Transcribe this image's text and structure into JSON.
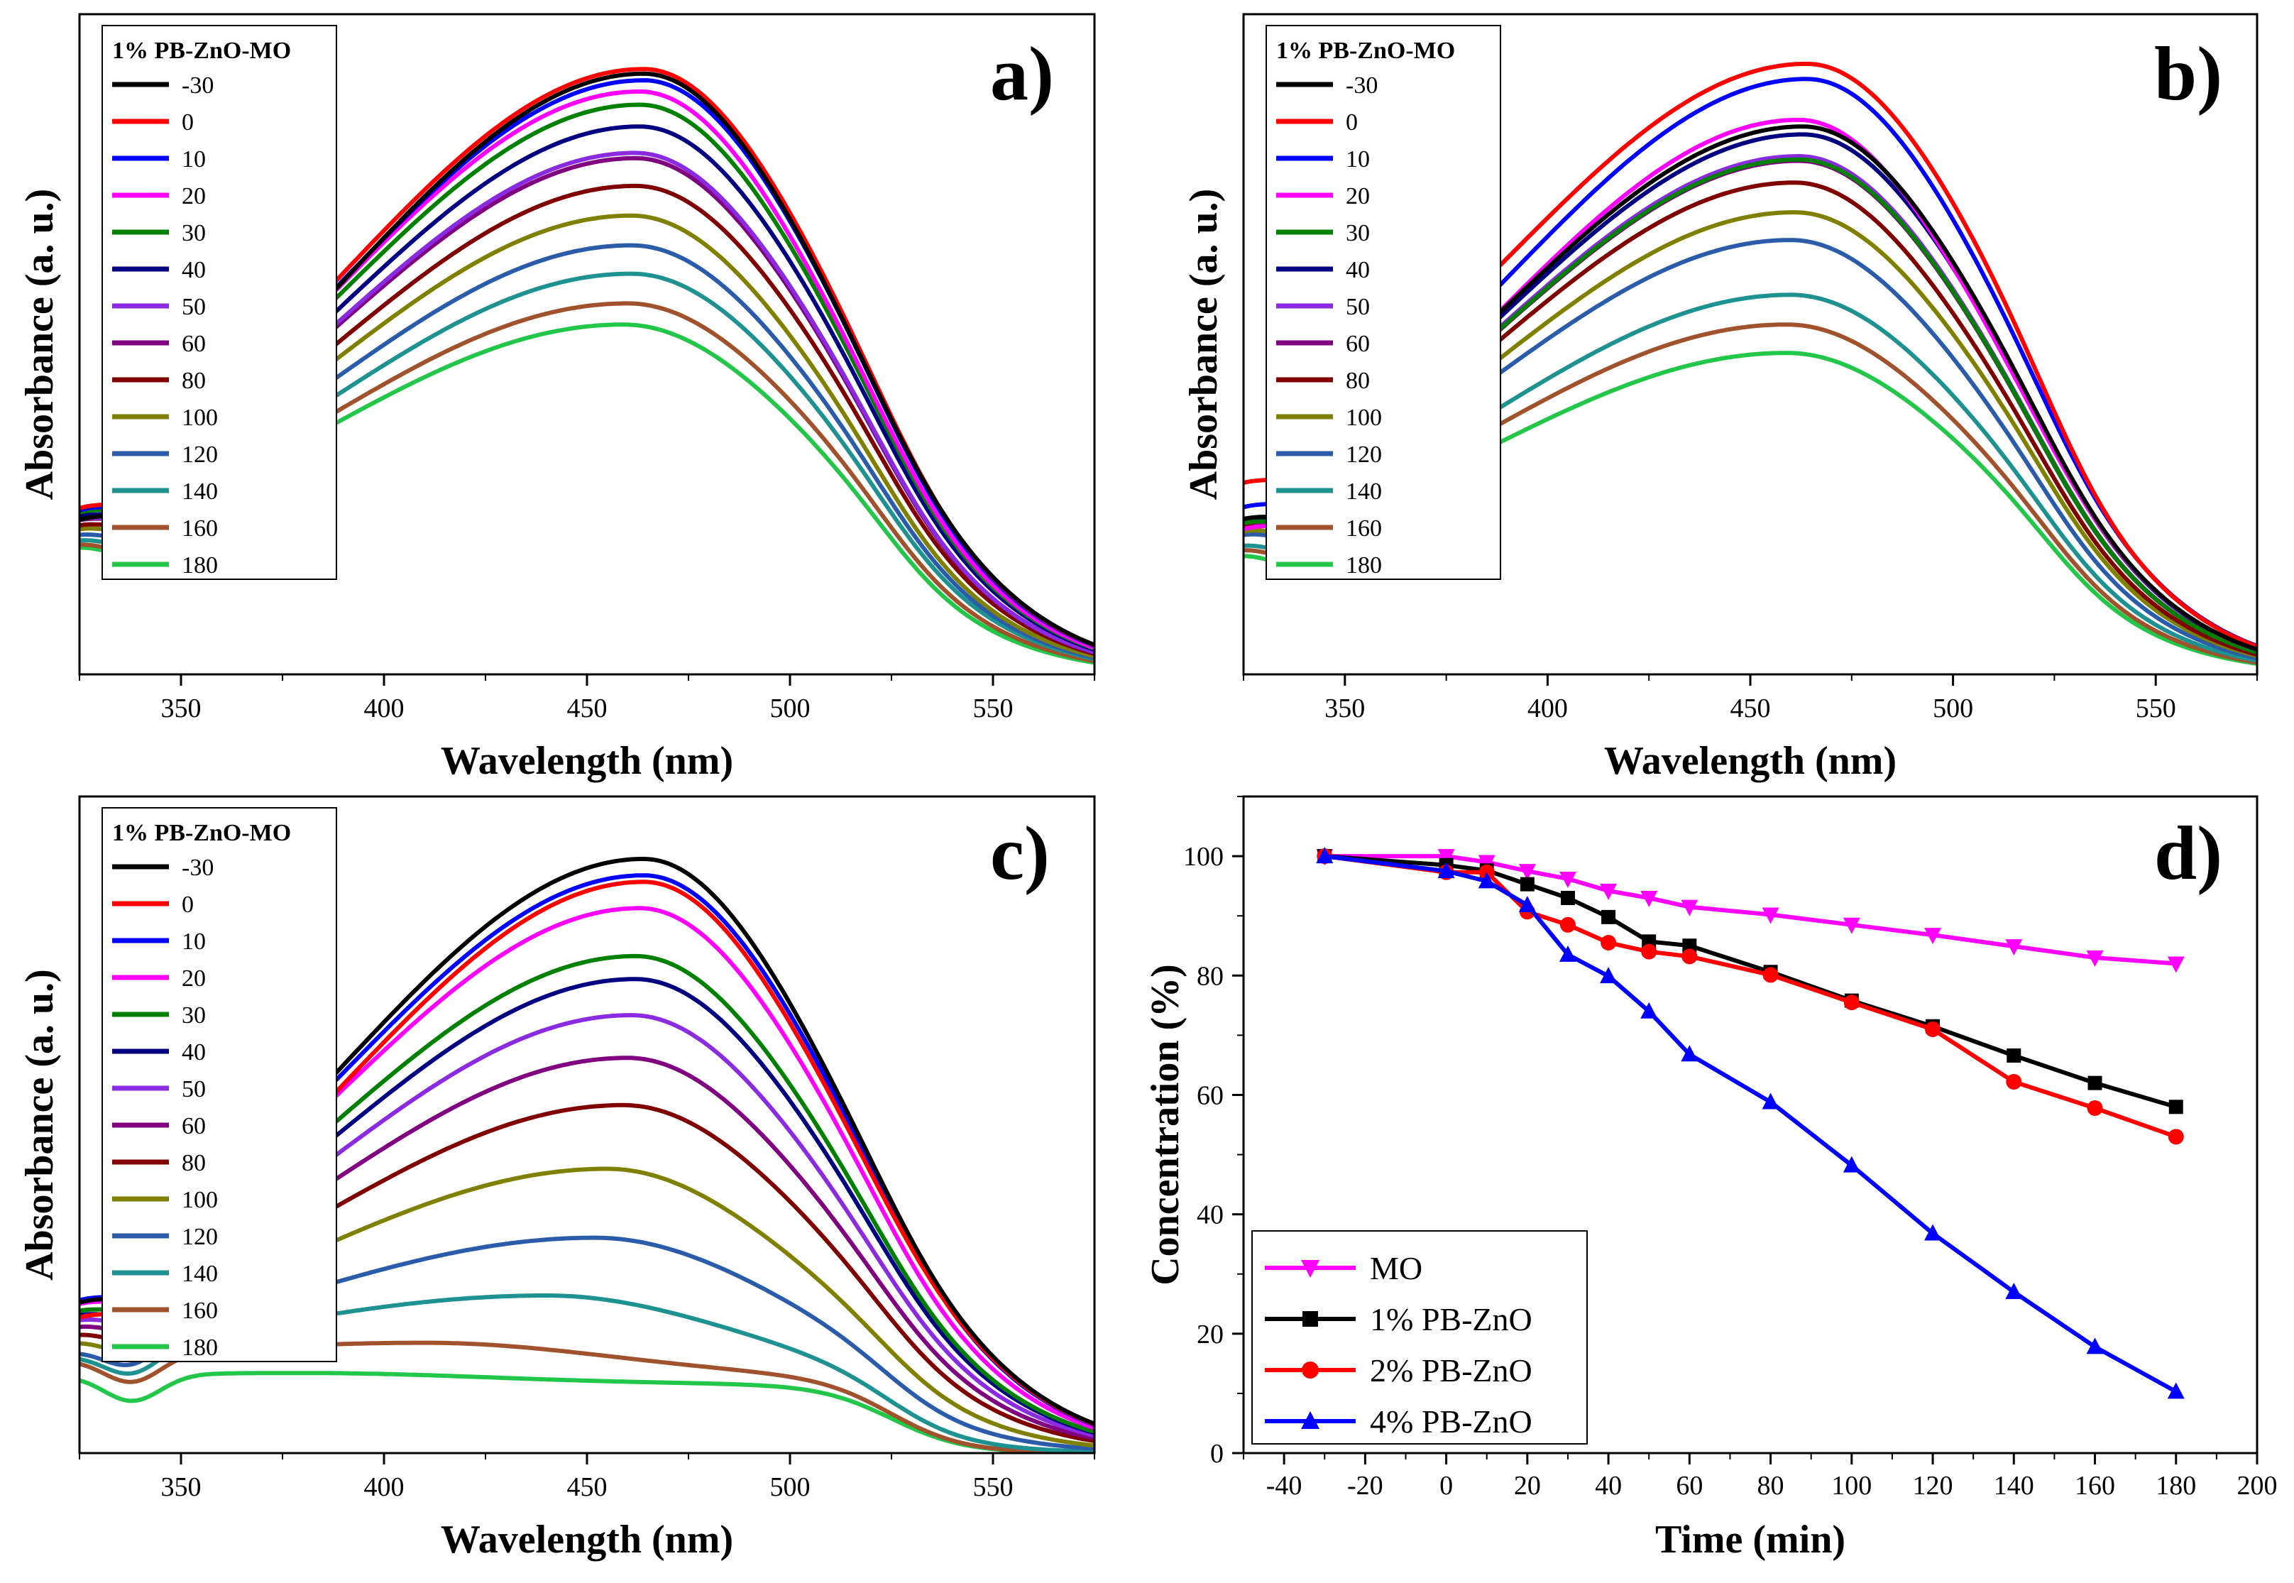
{
  "chart_data": [
    {
      "panel": "a)",
      "type": "line",
      "xlabel": "Wavelength (nm)",
      "ylabel": "Absorbance (a. u.)",
      "xlim": [
        325,
        575
      ],
      "xticks": [
        350,
        400,
        450,
        500,
        550
      ],
      "legend_title": "1% PB-ZnO-MO",
      "legend_position": "top-left",
      "series": [
        {
          "name": "-30",
          "color": "#000000",
          "peak": 0.91,
          "peak_x": 464,
          "baseline": 0.095
        },
        {
          "name": "0",
          "color": "#ff0000",
          "peak": 0.917,
          "peak_x": 464,
          "baseline": 0.115
        },
        {
          "name": "10",
          "color": "#0000ff",
          "peak": 0.9,
          "peak_x": 464,
          "baseline": 0.115
        },
        {
          "name": "20",
          "color": "#ff00ff",
          "peak": 0.883,
          "peak_x": 463,
          "baseline": 0.115
        },
        {
          "name": "30",
          "color": "#008000",
          "peak": 0.863,
          "peak_x": 463,
          "baseline": 0.115
        },
        {
          "name": "40",
          "color": "#000080",
          "peak": 0.83,
          "peak_x": 463,
          "baseline": 0.115
        },
        {
          "name": "50",
          "color": "#8a2be2",
          "peak": 0.79,
          "peak_x": 462,
          "baseline": 0.115
        },
        {
          "name": "60",
          "color": "#800080",
          "peak": 0.782,
          "peak_x": 462,
          "baseline": 0.115
        },
        {
          "name": "80",
          "color": "#800000",
          "peak": 0.74,
          "peak_x": 462,
          "baseline": 0.115
        },
        {
          "name": "100",
          "color": "#808000",
          "peak": 0.695,
          "peak_x": 461,
          "baseline": 0.115
        },
        {
          "name": "120",
          "color": "#2a5caa",
          "peak": 0.65,
          "peak_x": 461,
          "baseline": 0.115
        },
        {
          "name": "140",
          "color": "#1e9191",
          "peak": 0.607,
          "peak_x": 461,
          "baseline": 0.115
        },
        {
          "name": "160",
          "color": "#a0522d",
          "peak": 0.562,
          "peak_x": 460,
          "baseline": 0.115
        },
        {
          "name": "180",
          "color": "#22c74a",
          "peak": 0.53,
          "peak_x": 459,
          "baseline": 0.115
        }
      ]
    },
    {
      "panel": "b)",
      "type": "line",
      "xlabel": "Wavelength (nm)",
      "ylabel": "Absorbance (a. u.)",
      "xlim": [
        325,
        575
      ],
      "xticks": [
        350,
        400,
        450,
        500,
        550
      ],
      "legend_title": "1% PB-ZnO-MO",
      "legend_position": "top-left",
      "series": [
        {
          "name": "-30",
          "color": "#000000",
          "peak": 0.83,
          "peak_x": 463,
          "baseline": 0.11
        },
        {
          "name": "0",
          "color": "#ff0000",
          "peak": 0.925,
          "peak_x": 464,
          "baseline": 0.16
        },
        {
          "name": "10",
          "color": "#0000ff",
          "peak": 0.902,
          "peak_x": 464,
          "baseline": 0.12
        },
        {
          "name": "20",
          "color": "#ff00ff",
          "peak": 0.84,
          "peak_x": 462,
          "baseline": 0.085
        },
        {
          "name": "30",
          "color": "#008000",
          "peak": 0.78,
          "peak_x": 462,
          "baseline": 0.11
        },
        {
          "name": "40",
          "color": "#000080",
          "peak": 0.818,
          "peak_x": 463,
          "baseline": 0.11
        },
        {
          "name": "50",
          "color": "#8a2be2",
          "peak": 0.785,
          "peak_x": 462,
          "baseline": 0.11
        },
        {
          "name": "60",
          "color": "#800080",
          "peak": 0.778,
          "peak_x": 462,
          "baseline": 0.11
        },
        {
          "name": "80",
          "color": "#800000",
          "peak": 0.745,
          "peak_x": 461,
          "baseline": 0.11
        },
        {
          "name": "100",
          "color": "#808000",
          "peak": 0.7,
          "peak_x": 461,
          "baseline": 0.11
        },
        {
          "name": "120",
          "color": "#2a5caa",
          "peak": 0.658,
          "peak_x": 460,
          "baseline": 0.11
        },
        {
          "name": "140",
          "color": "#1e9191",
          "peak": 0.575,
          "peak_x": 460,
          "baseline": 0.11
        },
        {
          "name": "160",
          "color": "#a0522d",
          "peak": 0.53,
          "peak_x": 459,
          "baseline": 0.11
        },
        {
          "name": "180",
          "color": "#22c74a",
          "peak": 0.487,
          "peak_x": 459,
          "baseline": 0.11
        }
      ]
    },
    {
      "panel": "c)",
      "type": "line",
      "xlabel": "Wavelength (nm)",
      "ylabel": "Absorbance (a. u.)",
      "xlim": [
        325,
        575
      ],
      "xticks": [
        350,
        400,
        450,
        500,
        550
      ],
      "legend_title": "1% PB-ZnO-MO",
      "legend_position": "top-left",
      "series": [
        {
          "name": "-30",
          "color": "#000000",
          "peak": 0.905,
          "peak_x": 464,
          "baseline": 0.09
        },
        {
          "name": "0",
          "color": "#ff0000",
          "peak": 0.87,
          "peak_x": 464,
          "baseline": 0.07
        },
        {
          "name": "10",
          "color": "#0000ff",
          "peak": 0.88,
          "peak_x": 464,
          "baseline": 0.1
        },
        {
          "name": "20",
          "color": "#ff00ff",
          "peak": 0.83,
          "peak_x": 463,
          "baseline": 0.1
        },
        {
          "name": "30",
          "color": "#008000",
          "peak": 0.757,
          "peak_x": 462,
          "baseline": 0.1
        },
        {
          "name": "40",
          "color": "#000080",
          "peak": 0.722,
          "peak_x": 462,
          "baseline": 0.1
        },
        {
          "name": "50",
          "color": "#8a2be2",
          "peak": 0.667,
          "peak_x": 461,
          "baseline": 0.1
        },
        {
          "name": "60",
          "color": "#800080",
          "peak": 0.602,
          "peak_x": 460,
          "baseline": 0.1
        },
        {
          "name": "80",
          "color": "#800000",
          "peak": 0.53,
          "peak_x": 459,
          "baseline": 0.1
        },
        {
          "name": "100",
          "color": "#808000",
          "peak": 0.433,
          "peak_x": 455,
          "baseline": 0.1
        },
        {
          "name": "120",
          "color": "#2a5caa",
          "peak": 0.328,
          "peak_x": 452,
          "baseline": 0.105
        },
        {
          "name": "140",
          "color": "#1e9191",
          "peak": 0.24,
          "peak_x": 440,
          "baseline": 0.11
        },
        {
          "name": "160",
          "color": "#a0522d",
          "peak": 0.168,
          "peak_x": 410,
          "baseline": 0.115
        },
        {
          "name": "180",
          "color": "#22c74a",
          "peak": 0.122,
          "peak_x": 380,
          "baseline": 0.105
        }
      ]
    },
    {
      "panel": "d)",
      "type": "line",
      "xlabel": "Time (min)",
      "ylabel": "Concentration (%)",
      "xlim": [
        -50,
        200
      ],
      "ylim": [
        0,
        110
      ],
      "xticks": [
        -40,
        -20,
        0,
        20,
        40,
        60,
        80,
        100,
        120,
        140,
        160,
        180,
        200
      ],
      "yticks": [
        0,
        20,
        40,
        60,
        80,
        100
      ],
      "legend_position": "bottom-left",
      "x": [
        -30,
        0,
        10,
        20,
        30,
        40,
        50,
        60,
        80,
        100,
        120,
        140,
        160,
        180
      ],
      "series": [
        {
          "name": "MO",
          "color": "#ff00ff",
          "marker": "triangle-down",
          "values": [
            100,
            100,
            99,
            97.5,
            96.2,
            94.2,
            93,
            91.5,
            90.2,
            88.5,
            86.8,
            84.9,
            83,
            82
          ]
        },
        {
          "name": "1% PB-ZnO",
          "color": "#000000",
          "marker": "square",
          "values": [
            100,
            98.5,
            97.6,
            95.3,
            93,
            89.8,
            85.7,
            85,
            80.6,
            75.8,
            71.5,
            66.6,
            62,
            58
          ]
        },
        {
          "name": "2% PB-ZnO",
          "color": "#ff0000",
          "marker": "circle",
          "values": [
            100,
            97.3,
            97.3,
            90.7,
            88.5,
            85.5,
            84,
            83.2,
            80.1,
            75.5,
            71,
            62.2,
            57.8,
            53
          ]
        },
        {
          "name": "4% PB-ZnO",
          "color": "#0000ff",
          "marker": "triangle-up",
          "values": [
            100,
            97.5,
            95.8,
            91.8,
            83.5,
            79.9,
            74,
            66.8,
            58.8,
            48.2,
            36.8,
            27,
            17.8,
            10.3
          ]
        }
      ]
    }
  ]
}
